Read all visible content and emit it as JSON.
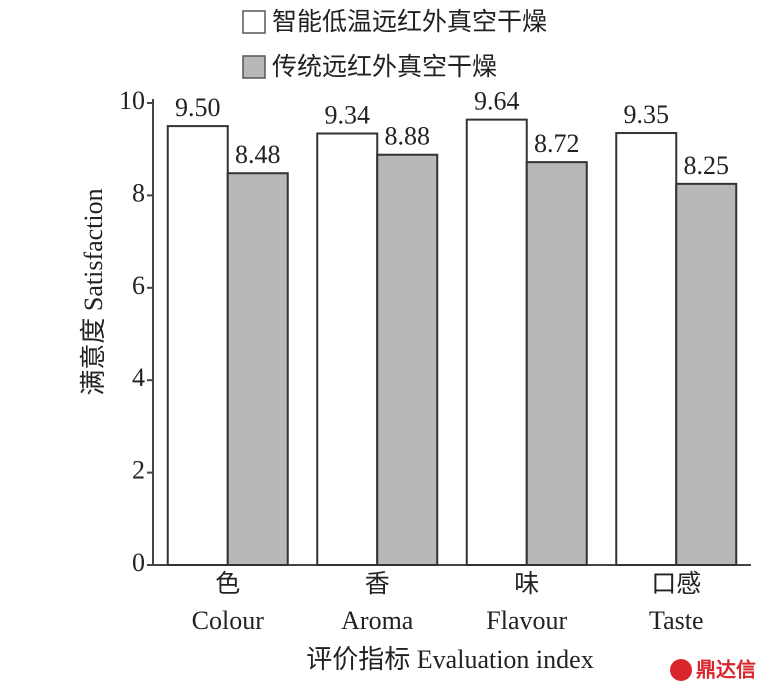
{
  "chart_data": {
    "type": "bar",
    "y_label": "满意度 Satisfaction",
    "x_label": "评价指标 Evaluation index",
    "categories": [
      "色",
      "香",
      "味",
      "口感"
    ],
    "category_subtitles": [
      "Colour",
      "Aroma",
      "Flavour",
      "Taste"
    ],
    "series": [
      {
        "name": "智能低温远红外真空干燥",
        "color": "#ffffff",
        "values": [
          9.5,
          9.34,
          9.64,
          9.35
        ],
        "value_labels": [
          "9.50",
          "9.34",
          "9.64",
          "9.35"
        ]
      },
      {
        "name": "传统远红外真空干燥",
        "color": "#b8b8b8",
        "values": [
          8.48,
          8.88,
          8.72,
          8.25
        ],
        "value_labels": [
          "8.48",
          "8.88",
          "8.72",
          "8.25"
        ]
      }
    ],
    "ylim": [
      0,
      10
    ],
    "yticks": [
      0,
      2,
      4,
      6,
      8,
      10
    ],
    "watermark": "鼎达信"
  }
}
